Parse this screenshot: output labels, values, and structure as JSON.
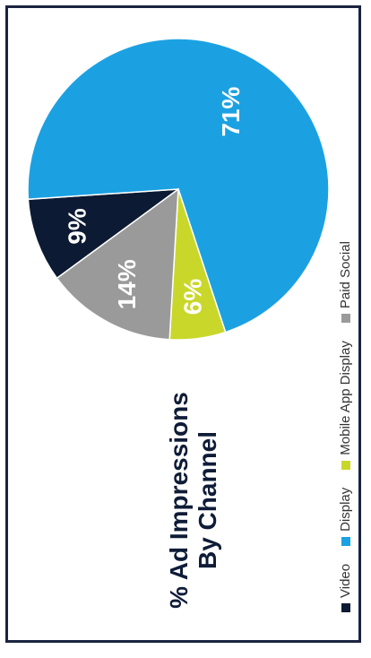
{
  "chart_data": {
    "type": "pie",
    "title_lines": [
      "% Ad Impressions",
      "By Channel"
    ],
    "categories": [
      "Video",
      "Display",
      "Mobile App Display",
      "Paid Social"
    ],
    "values": [
      9,
      71,
      6,
      14
    ],
    "labels": [
      "9%",
      "71%",
      "6%",
      "14%"
    ],
    "colors": [
      "#0c1a33",
      "#1ba1e2",
      "#c9d72a",
      "#9a9a9a"
    ],
    "legend_position": "bottom"
  }
}
